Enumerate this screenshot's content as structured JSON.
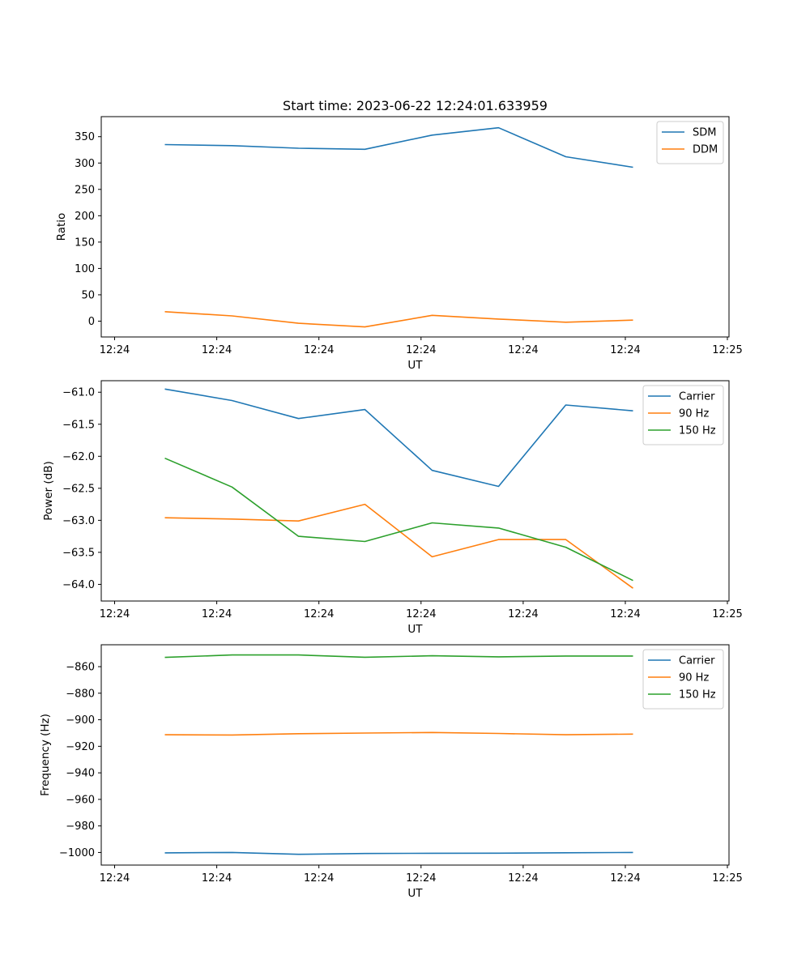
{
  "chart_data": [
    {
      "type": "line",
      "title": "Start time: 2023-06-22 12:24:01.633959",
      "xlabel": "UT",
      "ylabel": "Ratio",
      "x_tick_labels": [
        "12:24",
        "12:24",
        "12:24",
        "12:24",
        "12:24",
        "12:24",
        "12:24"
      ],
      "x_tick_end_label": "12:25",
      "ylim": [
        -30,
        388
      ],
      "yticks": [
        0,
        50,
        100,
        150,
        200,
        250,
        300,
        350
      ],
      "legend_position": "upper right",
      "series": [
        {
          "name": "SDM",
          "color": "#1f77b4",
          "values": [
            335,
            333,
            328,
            326,
            353,
            367,
            312,
            292
          ]
        },
        {
          "name": "DDM",
          "color": "#ff7f0e",
          "values": [
            18,
            10,
            -4,
            -11,
            11,
            4,
            -2,
            2
          ]
        }
      ]
    },
    {
      "type": "line",
      "title": "",
      "xlabel": "UT",
      "ylabel": "Power (dB)",
      "x_tick_labels": [
        "12:24",
        "12:24",
        "12:24",
        "12:24",
        "12:24",
        "12:24",
        "12:24"
      ],
      "x_tick_end_label": "12:25",
      "ylim": [
        -64.26,
        -60.82
      ],
      "yticks": [
        -64.0,
        -63.5,
        -63.0,
        -62.5,
        -62.0,
        -61.5,
        -61.0
      ],
      "legend_position": "upper right",
      "series": [
        {
          "name": "Carrier",
          "color": "#1f77b4",
          "values": [
            -60.95,
            -61.13,
            -61.41,
            -61.27,
            -62.22,
            -62.47,
            -61.2,
            -61.29
          ]
        },
        {
          "name": "90 Hz",
          "color": "#ff7f0e",
          "values": [
            -62.96,
            -62.98,
            -63.01,
            -62.75,
            -63.57,
            -63.3,
            -63.3,
            -64.06
          ]
        },
        {
          "name": "150 Hz",
          "color": "#2ca02c",
          "values": [
            -62.03,
            -62.48,
            -63.25,
            -63.33,
            -63.04,
            -63.12,
            -63.42,
            -63.94
          ]
        }
      ]
    },
    {
      "type": "line",
      "title": "",
      "xlabel": "UT",
      "ylabel": "Frequency (Hz)",
      "x_tick_labels": [
        "12:24",
        "12:24",
        "12:24",
        "12:24",
        "12:24",
        "12:24",
        "12:24"
      ],
      "x_tick_end_label": "12:25",
      "ylim": [
        -1009.5,
        -843.5
      ],
      "yticks": [
        -1000,
        -980,
        -960,
        -940,
        -920,
        -900,
        -880,
        -860
      ],
      "legend_position": "upper right",
      "series": [
        {
          "name": "Carrier",
          "color": "#1f77b4",
          "values": [
            -1000.3,
            -1000.0,
            -1001.4,
            -1000.8,
            -1000.6,
            -1000.5,
            -1000.2,
            -1000.0
          ]
        },
        {
          "name": "90 Hz",
          "color": "#ff7f0e",
          "values": [
            -911.3,
            -911.5,
            -910.5,
            -910.0,
            -909.6,
            -910.3,
            -911.3,
            -910.8
          ]
        },
        {
          "name": "150 Hz",
          "color": "#2ca02c",
          "values": [
            -853.0,
            -851.2,
            -851.2,
            -852.9,
            -851.8,
            -852.6,
            -852.0,
            -852.0
          ]
        }
      ]
    }
  ]
}
